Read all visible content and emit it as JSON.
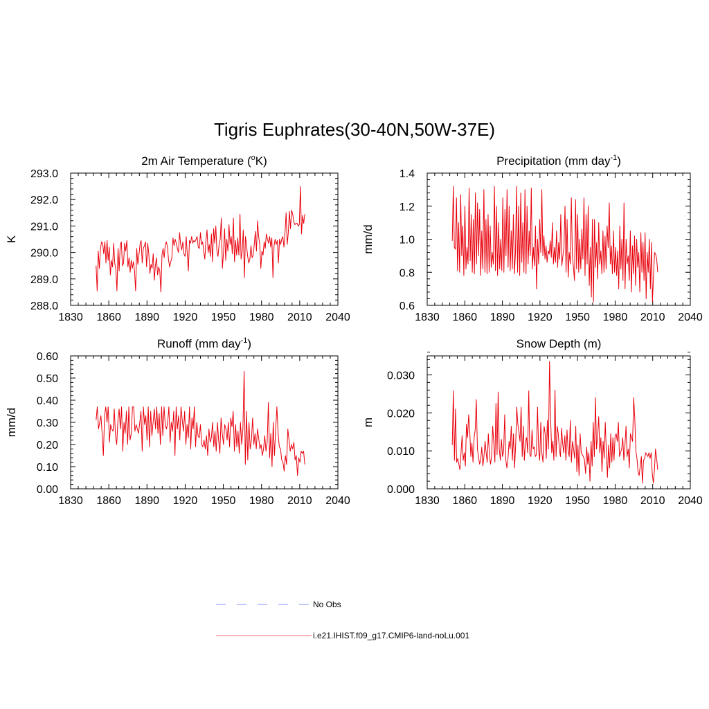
{
  "figure": {
    "title": "Tigris Euphrates(30-40N,50W-37E)"
  },
  "legend": [
    {
      "label": "No Obs",
      "color": "#9aa6ff",
      "style": "dashed"
    },
    {
      "label": "i.e21.IHIST.f09_g17.CMIP6-land-noLu.001",
      "color": "#f08a8a",
      "style": "solid"
    }
  ],
  "chart_data": [
    {
      "type": "line",
      "title": "2m Air Temperature (°K)",
      "title_parts": {
        "pre": "2m Air Temperature (",
        "sup": "o",
        "post": "K)"
      },
      "xlabel": "",
      "ylabel": "K",
      "xlim": [
        1830,
        2040
      ],
      "ylim": [
        288.0,
        293.0
      ],
      "xticks": [
        1830,
        1860,
        1890,
        1920,
        1950,
        1980,
        2010,
        2040
      ],
      "xtick_labels": [
        "1830",
        "1860",
        "1890",
        "1920",
        "1950",
        "1980",
        "2010",
        "2040"
      ],
      "yticks": [
        288.0,
        289.0,
        290.0,
        291.0,
        292.0,
        293.0
      ],
      "ytick_labels": [
        "288.0",
        "289.0",
        "290.0",
        "291.0",
        "292.0",
        "293.0"
      ],
      "line_color": "#e8000b",
      "series": [
        {
          "x_start": 1850,
          "x_end": 2014,
          "values": [
            289.5,
            288.55,
            290.05,
            289.4,
            290.15,
            290.4,
            290.35,
            289.95,
            290.4,
            289.6,
            290.45,
            289.7,
            290.2,
            289.15,
            289.7,
            289.45,
            290.35,
            289.6,
            289.35,
            288.55,
            290.15,
            289.3,
            290.3,
            290.4,
            289.5,
            289.6,
            290.35,
            290.05,
            290.45,
            289.45,
            289.8,
            289.25,
            289.7,
            289.4,
            289.65,
            289.3,
            288.55,
            290.15,
            289.55,
            289.9,
            290.3,
            290.45,
            289.6,
            290.15,
            290.25,
            290.4,
            289.45,
            290.35,
            289.95,
            289.2,
            289.55,
            289.4,
            289.95,
            288.95,
            289.5,
            289.8,
            289.15,
            289.45,
            289.3,
            288.5,
            289.9,
            290.15,
            289.8,
            290.3,
            290.4,
            290.2,
            289.7,
            289.45,
            289.65,
            289.8,
            290.55,
            290.25,
            290.5,
            290.35,
            290.15,
            290.0,
            290.75,
            290.3,
            290.1,
            290.4,
            289.95,
            289.85,
            290.6,
            289.95,
            289.3,
            290.45,
            290.35,
            290.6,
            290.35,
            290.45,
            290.4,
            290.5,
            290.6,
            290.2,
            290.15,
            290.75,
            290.3,
            290.4,
            290.05,
            289.75,
            290.45,
            290.85,
            290.0,
            290.3,
            289.85,
            290.7,
            289.65,
            290.9,
            290.35,
            291.0,
            290.05,
            289.85,
            290.3,
            290.5,
            291.3,
            289.4,
            290.0,
            290.9,
            289.7,
            290.5,
            290.05,
            291.05,
            290.3,
            290.6,
            289.95,
            291.3,
            289.65,
            290.45,
            289.9,
            290.55,
            289.9,
            291.45,
            289.75,
            290.05,
            290.85,
            289.05,
            290.6,
            290.25,
            289.85,
            289.6,
            289.75,
            290.25,
            289.8,
            289.9,
            290.3,
            290.8,
            290.05,
            291.2,
            290.6,
            290.3,
            289.4,
            290.05,
            289.9,
            290.4,
            290.15,
            290.7,
            290.5,
            290.35,
            290.6,
            290.2,
            290.55,
            289.05,
            290.25,
            290.5,
            290.3,
            290.45,
            289.6,
            290.5,
            290.3,
            290.5,
            290.6,
            290.2,
            290.75,
            291.5,
            290.3,
            290.75,
            291.55,
            290.9,
            291.6,
            291.45,
            291.15,
            291.05,
            291.1,
            291.1,
            291.0,
            291.05,
            292.5,
            290.7,
            291.4,
            291.1,
            291.45
          ]
        }
      ]
    },
    {
      "type": "line",
      "title": "Precipitation (mm day-1)",
      "title_parts": {
        "pre": "Precipitation (mm day",
        "sup": "-1",
        "post": ")"
      },
      "xlabel": "",
      "ylabel": "mm/d",
      "xlim": [
        1830,
        2040
      ],
      "ylim": [
        0.6,
        1.4
      ],
      "xticks": [
        1830,
        1860,
        1890,
        1920,
        1950,
        1980,
        2010,
        2040
      ],
      "xtick_labels": [
        "1830",
        "1860",
        "1890",
        "1920",
        "1950",
        "1980",
        "2010",
        "2040"
      ],
      "yticks": [
        0.6,
        0.8,
        1.0,
        1.2,
        1.4
      ],
      "ytick_labels": [
        "0.6",
        "0.8",
        "1.0",
        "1.2",
        "1.4"
      ],
      "line_color": "#e8000b",
      "series": [
        {
          "x_start": 1850,
          "x_end": 2014,
          "values": [
            0.99,
            1.32,
            0.95,
            0.94,
            1.25,
            0.81,
            1.1,
            0.8,
            1.27,
            0.9,
            1.08,
            0.78,
            1.2,
            0.82,
            0.95,
            0.85,
            1.31,
            0.87,
            1.15,
            0.8,
            1.12,
            0.79,
            1.28,
            0.85,
            1.22,
            0.9,
            1.18,
            0.78,
            1.05,
            0.82,
            1.3,
            0.8,
            1.12,
            0.79,
            1.15,
            0.8,
            1.08,
            0.83,
            0.92,
            0.85,
            1.32,
            0.81,
            1.2,
            0.78,
            1.1,
            0.82,
            1.0,
            0.81,
            1.25,
            0.8,
            1.18,
            0.9,
            1.3,
            0.83,
            1.2,
            0.81,
            1.05,
            0.82,
            1.15,
            0.79,
            0.92,
            1.32,
            0.8,
            1.2,
            0.78,
            1.28,
            0.86,
            1.1,
            0.8,
            1.3,
            0.79,
            1.2,
            0.85,
            1.05,
            0.9,
            1.31,
            0.82,
            0.95,
            0.84,
            1.08,
            0.7,
            1.0,
            0.85,
            1.12,
            0.92,
            1.3,
            0.9,
            1.02,
            0.88,
            0.96,
            0.86,
            0.93,
            0.91,
            0.99,
            0.89,
            1.1,
            0.85,
            0.95,
            0.86,
            1.05,
            0.83,
            0.98,
            0.88,
            1.15,
            0.84,
            0.9,
            0.95,
            1.2,
            0.8,
            1.12,
            0.77,
            0.92,
            0.85,
            1.25,
            0.9,
            0.83,
            0.75,
            1.24,
            0.82,
            1.15,
            0.8,
            1.0,
            0.82,
            1.06,
            0.88,
            1.25,
            0.78,
            1.15,
            0.85,
            1.2,
            0.72,
            0.95,
            0.65,
            1.12,
            0.62,
            1.12,
            0.83,
            0.98,
            0.76,
            1.1,
            0.85,
            0.93,
            0.79,
            1.05,
            0.8,
            1.02,
            0.82,
            1.08,
            0.95,
            1.22,
            0.85,
            0.96,
            0.79,
            1.05,
            0.8,
            0.95,
            0.78,
            0.93,
            0.7,
            1.08,
            0.82,
            1.0,
            0.75,
            1.22,
            0.7,
            1.0,
            0.85,
            0.9,
            0.75,
            1.05,
            0.68,
            0.96,
            0.79,
            1.02,
            0.72,
            1.0,
            0.83,
            0.92,
            0.68,
            1.04,
            0.8,
            0.98,
            0.75,
            1.04,
            0.64,
            0.92,
            0.8,
            1.0,
            0.7,
            0.98,
            0.62,
            0.78,
            0.92,
            0.91,
            0.88,
            0.8
          ]
        }
      ]
    },
    {
      "type": "line",
      "title": "Runoff (mm day-1)",
      "title_parts": {
        "pre": "Runoff (mm day",
        "sup": "-1",
        "post": ")"
      },
      "xlabel": "",
      "ylabel": "mm/d",
      "xlim": [
        1830,
        2040
      ],
      "ylim": [
        0.0,
        0.6
      ],
      "xticks": [
        1830,
        1860,
        1890,
        1920,
        1950,
        1980,
        2010,
        2040
      ],
      "xtick_labels": [
        "1830",
        "1860",
        "1890",
        "1920",
        "1950",
        "1980",
        "2010",
        "2040"
      ],
      "yticks": [
        0.0,
        0.1,
        0.2,
        0.3,
        0.4,
        0.5,
        0.6
      ],
      "ytick_labels": [
        "0.00",
        "0.10",
        "0.20",
        "0.30",
        "0.40",
        "0.50",
        "0.60"
      ],
      "line_color": "#e8000b",
      "series": [
        {
          "x_start": 1850,
          "x_end": 2014,
          "values": [
            0.31,
            0.37,
            0.27,
            0.3,
            0.33,
            0.25,
            0.15,
            0.33,
            0.37,
            0.3,
            0.37,
            0.21,
            0.29,
            0.27,
            0.26,
            0.36,
            0.24,
            0.2,
            0.31,
            0.36,
            0.27,
            0.37,
            0.17,
            0.3,
            0.25,
            0.35,
            0.2,
            0.37,
            0.22,
            0.25,
            0.37,
            0.37,
            0.26,
            0.29,
            0.27,
            0.25,
            0.3,
            0.35,
            0.17,
            0.37,
            0.29,
            0.33,
            0.22,
            0.37,
            0.19,
            0.35,
            0.24,
            0.3,
            0.36,
            0.27,
            0.37,
            0.25,
            0.34,
            0.2,
            0.37,
            0.24,
            0.37,
            0.29,
            0.27,
            0.3,
            0.37,
            0.21,
            0.3,
            0.26,
            0.35,
            0.15,
            0.37,
            0.27,
            0.33,
            0.22,
            0.37,
            0.31,
            0.26,
            0.35,
            0.2,
            0.29,
            0.23,
            0.37,
            0.18,
            0.32,
            0.27,
            0.37,
            0.19,
            0.3,
            0.24,
            0.23,
            0.29,
            0.2,
            0.19,
            0.22,
            0.18,
            0.24,
            0.15,
            0.27,
            0.21,
            0.23,
            0.3,
            0.19,
            0.26,
            0.17,
            0.3,
            0.22,
            0.16,
            0.32,
            0.25,
            0.2,
            0.29,
            0.27,
            0.22,
            0.3,
            0.19,
            0.32,
            0.28,
            0.35,
            0.17,
            0.29,
            0.19,
            0.26,
            0.16,
            0.3,
            0.2,
            0.27,
            0.53,
            0.11,
            0.35,
            0.13,
            0.3,
            0.18,
            0.22,
            0.32,
            0.2,
            0.25,
            0.18,
            0.27,
            0.23,
            0.18,
            0.2,
            0.15,
            0.18,
            0.24,
            0.17,
            0.21,
            0.39,
            0.14,
            0.25,
            0.1,
            0.3,
            0.15,
            0.27,
            0.37,
            0.25,
            0.19,
            0.18,
            0.13,
            0.12,
            0.08,
            0.15,
            0.11,
            0.27,
            0.22,
            0.17,
            0.2,
            0.18,
            0.21,
            0.13,
            0.15,
            0.06,
            0.14,
            0.12,
            0.17,
            0.16,
            0.17,
            0.11
          ]
        }
      ]
    },
    {
      "type": "line",
      "title": "Snow Depth (m)",
      "title_parts": {
        "pre": "Snow Depth (m)",
        "sup": "",
        "post": ""
      },
      "xlabel": "",
      "ylabel": "m",
      "xlim": [
        1830,
        2040
      ],
      "ylim": [
        0.0,
        0.035
      ],
      "xticks": [
        1830,
        1860,
        1890,
        1920,
        1950,
        1980,
        2010,
        2040
      ],
      "xtick_labels": [
        "1830",
        "1860",
        "1890",
        "1920",
        "1950",
        "1980",
        "2010",
        "2040"
      ],
      "yticks": [
        0.0,
        0.01,
        0.02,
        0.03
      ],
      "ytick_labels": [
        "0.000",
        "0.010",
        "0.020",
        "0.030"
      ],
      "line_color": "#e8000b",
      "series": [
        {
          "x_start": 1850,
          "x_end": 2014,
          "values": [
            0.0115,
            0.0258,
            0.0075,
            0.021,
            0.007,
            0.008,
            0.0065,
            0.005,
            0.0095,
            0.014,
            0.0075,
            0.0095,
            0.006,
            0.017,
            0.0135,
            0.0195,
            0.015,
            0.0085,
            0.012,
            0.007,
            0.0135,
            0.0155,
            0.0235,
            0.0105,
            0.0085,
            0.0065,
            0.0075,
            0.011,
            0.006,
            0.0085,
            0.0125,
            0.0095,
            0.007,
            0.0145,
            0.009,
            0.0065,
            0.0085,
            0.0165,
            0.012,
            0.007,
            0.0225,
            0.009,
            0.0255,
            0.0105,
            0.0075,
            0.013,
            0.0085,
            0.01,
            0.0195,
            0.0075,
            0.0055,
            0.008,
            0.0125,
            0.0105,
            0.0165,
            0.0075,
            0.0145,
            0.0055,
            0.0115,
            0.0215,
            0.017,
            0.015,
            0.0125,
            0.0215,
            0.0085,
            0.0165,
            0.0075,
            0.0125,
            0.0135,
            0.0095,
            0.0258,
            0.009,
            0.0085,
            0.0155,
            0.0105,
            0.011,
            0.0085,
            0.009,
            0.0215,
            0.0105,
            0.0075,
            0.0175,
            0.0095,
            0.007,
            0.0165,
            0.0145,
            0.008,
            0.018,
            0.0105,
            0.0335,
            0.0185,
            0.0095,
            0.0125,
            0.0075,
            0.026,
            0.0085,
            0.0165,
            0.0145,
            0.0105,
            0.0085,
            0.016,
            0.012,
            0.0095,
            0.014,
            0.0075,
            0.0155,
            0.01,
            0.0085,
            0.018,
            0.007,
            0.0125,
            0.0105,
            0.008,
            0.0165,
            0.0045,
            0.0115,
            0.0035,
            0.0145,
            0.0095,
            0.009,
            0.0085,
            0.0075,
            0.004,
            0.011,
            0.0065,
            0.0095,
            0.002,
            0.0125,
            0.006,
            0.0175,
            0.0085,
            0.024,
            0.0105,
            0.014,
            0.019,
            0.0095,
            0.0135,
            0.0045,
            0.0125,
            0.008,
            0.0175,
            0.0095,
            0.003,
            0.0115,
            0.0055,
            0.0145,
            0.007,
            0.0135,
            0.0075,
            0.014,
            0.0145,
            0.0125,
            0.0175,
            0.0085,
            0.0095,
            0.0105,
            0.0135,
            0.0075,
            0.0115,
            0.0165,
            0.0085,
            0.0105,
            0.0055,
            0.0145,
            0.0135,
            0.0125,
            0.024,
            0.0185,
            0.01,
            0.008,
            0.0045,
            0.0035,
            0.006,
            0.0085,
            0.0015,
            0.0075,
            0.008,
            0.0095,
            0.009,
            0.0085,
            0.0095,
            0.008,
            0.0095,
            0.004,
            0.0015,
            0.005,
            0.0105,
            0.008,
            0.005
          ]
        }
      ]
    }
  ]
}
